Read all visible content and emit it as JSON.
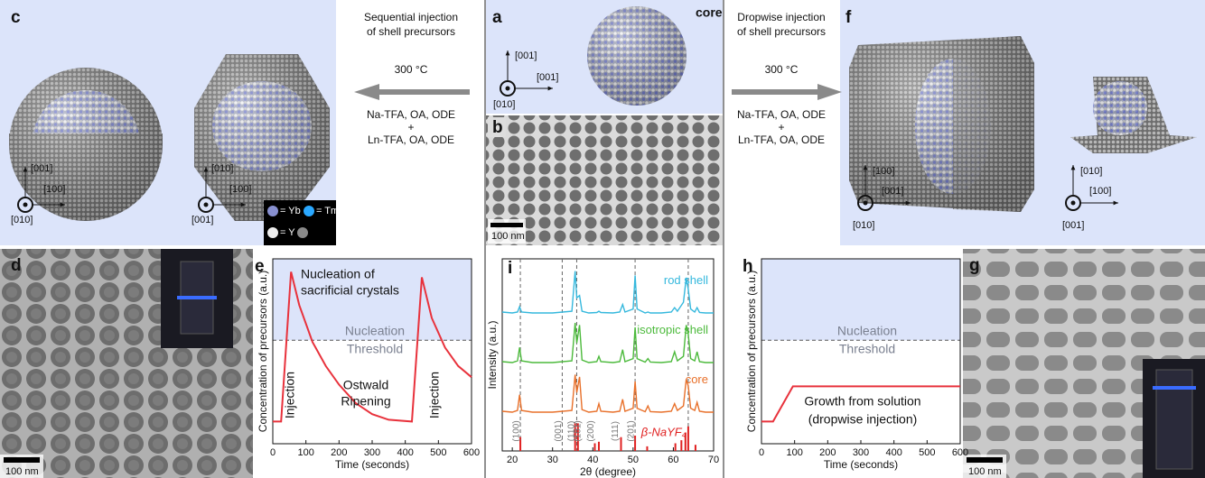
{
  "figure": {
    "c": {
      "letter": "c",
      "axes_left": [
        "[001]",
        "[100]",
        "[010]"
      ],
      "axes_right": [
        "[010]",
        "[100]",
        "[001]"
      ]
    },
    "left_arrow": {
      "caption": [
        "Sequential injection",
        "of shell precursors"
      ],
      "temp": "300 °C",
      "lines": [
        "Na-TFA, OA, ODE",
        "+",
        "Ln-TFA, OA, ODE"
      ]
    },
    "a": {
      "letter": "a",
      "label": "core",
      "axes": [
        "[001]",
        "[001]",
        "[010]"
      ]
    },
    "b": {
      "letter": "b",
      "scale": "100 nm"
    },
    "right_arrow": {
      "caption": [
        "Dropwise injection",
        "of shell precursors"
      ],
      "temp": "300 °C",
      "lines": [
        "Na-TFA, OA, ODE",
        "+",
        "Ln-TFA, OA, ODE"
      ]
    },
    "f": {
      "letter": "f",
      "axes_left": [
        "[100]",
        "[001]",
        "[010]"
      ],
      "axes_right": [
        "[010]",
        "[100]",
        "[001]"
      ]
    },
    "legend": {
      "yb": "= Yb",
      "tm": "= Tm",
      "y": "= Y"
    },
    "d": {
      "letter": "d",
      "scale": "100 nm"
    },
    "g": {
      "letter": "g",
      "scale": "100 nm"
    },
    "e": {
      "letter": "e",
      "nucleation": [
        "Nucleation of",
        "sacrificial crystals"
      ],
      "threshold": [
        "Nucleation",
        "Threshold"
      ],
      "injection": [
        "Injection",
        "Injection"
      ],
      "ostwald": [
        "Ostwald",
        "Ripening"
      ]
    },
    "i": {
      "letter": "i"
    },
    "h": {
      "letter": "h",
      "threshold": [
        "Nucleation",
        "Threshold"
      ],
      "growth": [
        "Growth from solution",
        "(dropwise injection)"
      ]
    }
  },
  "chart_data": [
    {
      "type": "line",
      "xlabel": "Time (seconds)",
      "ylabel": "Concentration of precursors (a.u.)",
      "x": [
        0,
        25,
        55,
        80,
        120,
        160,
        200,
        250,
        300,
        350,
        420,
        450,
        480,
        520,
        560,
        600
      ],
      "values": [
        0.12,
        0.12,
        0.93,
        0.75,
        0.55,
        0.42,
        0.32,
        0.22,
        0.16,
        0.13,
        0.12,
        0.9,
        0.68,
        0.52,
        0.42,
        0.36
      ],
      "color": "#e8323c",
      "threshold": 0.56,
      "xlim": [
        0,
        600
      ],
      "xticks": [
        0,
        100,
        200,
        300,
        400,
        500,
        600
      ],
      "ylim": [
        0,
        1
      ]
    },
    {
      "type": "line",
      "xlabel": "2θ (degree)",
      "ylabel": "Intensity (a.u.)",
      "x": [
        17.5,
        20,
        21.3,
        21.8,
        22.3,
        25,
        30,
        34.8,
        35.6,
        36.0,
        36.7,
        37.3,
        39,
        41,
        41.5,
        42,
        45,
        46.7,
        47.4,
        48,
        50,
        50.5,
        51,
        53,
        53.7,
        54.3,
        57,
        59.5,
        60.3,
        61,
        62.5,
        63.2,
        63.7,
        64.3,
        65.3,
        65.9,
        66.5,
        68,
        70
      ],
      "series": [
        {
          "name": "rod shell",
          "color": "#35b8dd",
          "values": [
            0.08,
            0.06,
            0.08,
            0.2,
            0.08,
            0.06,
            0.06,
            0.1,
            1.0,
            0.4,
            0.45,
            0.1,
            0.06,
            0.07,
            0.1,
            0.07,
            0.06,
            0.08,
            0.25,
            0.08,
            0.15,
            0.9,
            0.15,
            0.06,
            0.08,
            0.06,
            0.06,
            0.08,
            0.18,
            0.1,
            0.3,
            0.85,
            0.6,
            0.15,
            0.08,
            0.18,
            0.07,
            0.06,
            0.06
          ]
        },
        {
          "name": "isotropic shell",
          "color": "#4cba3c",
          "values": [
            0.08,
            0.06,
            0.1,
            0.4,
            0.1,
            0.06,
            0.06,
            0.1,
            0.95,
            0.5,
            0.9,
            0.12,
            0.06,
            0.08,
            0.2,
            0.08,
            0.06,
            0.08,
            0.35,
            0.08,
            0.15,
            0.85,
            0.15,
            0.07,
            0.15,
            0.07,
            0.06,
            0.08,
            0.3,
            0.1,
            0.2,
            0.9,
            0.7,
            0.15,
            0.1,
            0.3,
            0.08,
            0.06,
            0.06
          ]
        },
        {
          "name": "core",
          "color": "#e8702a",
          "values": [
            0.08,
            0.06,
            0.1,
            0.45,
            0.1,
            0.06,
            0.06,
            0.1,
            0.9,
            0.5,
            0.85,
            0.12,
            0.06,
            0.08,
            0.25,
            0.08,
            0.06,
            0.08,
            0.35,
            0.08,
            0.15,
            0.75,
            0.15,
            0.07,
            0.2,
            0.07,
            0.06,
            0.08,
            0.25,
            0.1,
            0.2,
            0.8,
            0.65,
            0.15,
            0.1,
            0.28,
            0.08,
            0.06,
            0.06
          ]
        }
      ],
      "reference": {
        "name": "β-NaYF₄",
        "color": "#e02020",
        "x": [
          22,
          35.6,
          36.3,
          40.5,
          41.5,
          47,
          50.5,
          53.5,
          60.5,
          62,
          63,
          63.7,
          65.5
        ],
        "values": [
          0.45,
          0.9,
          0.9,
          0.25,
          0.3,
          0.45,
          0.5,
          0.15,
          0.25,
          0.35,
          0.6,
          0.8,
          0.2
        ]
      },
      "peak_labels": [
        {
          "value": 22,
          "label": "(100)"
        },
        {
          "value": 32.4,
          "label": "(001)"
        },
        {
          "value": 35.6,
          "label": "(110)"
        },
        {
          "value": 37.2,
          "label": "(101)"
        },
        {
          "value": 40.5,
          "label": "(200)"
        },
        {
          "value": 46.5,
          "label": "(111)"
        },
        {
          "value": 50.5,
          "label": "(201)"
        }
      ],
      "dashed_x": [
        22,
        32.4,
        36,
        50.5,
        63.7
      ],
      "xlim": [
        17.5,
        70
      ],
      "xticks": [
        20,
        30,
        40,
        50,
        60,
        70
      ],
      "ylim": [
        0,
        1
      ]
    },
    {
      "type": "line",
      "xlabel": "Time (seconds)",
      "ylabel": "Concentration of precursors (a.u.)",
      "x": [
        0,
        35,
        95,
        600
      ],
      "values": [
        0.12,
        0.12,
        0.31,
        0.31
      ],
      "color": "#e8323c",
      "threshold": 0.56,
      "xlim": [
        0,
        600
      ],
      "xticks": [
        0,
        100,
        200,
        300,
        400,
        500,
        600
      ],
      "ylim": [
        0,
        1
      ]
    }
  ]
}
